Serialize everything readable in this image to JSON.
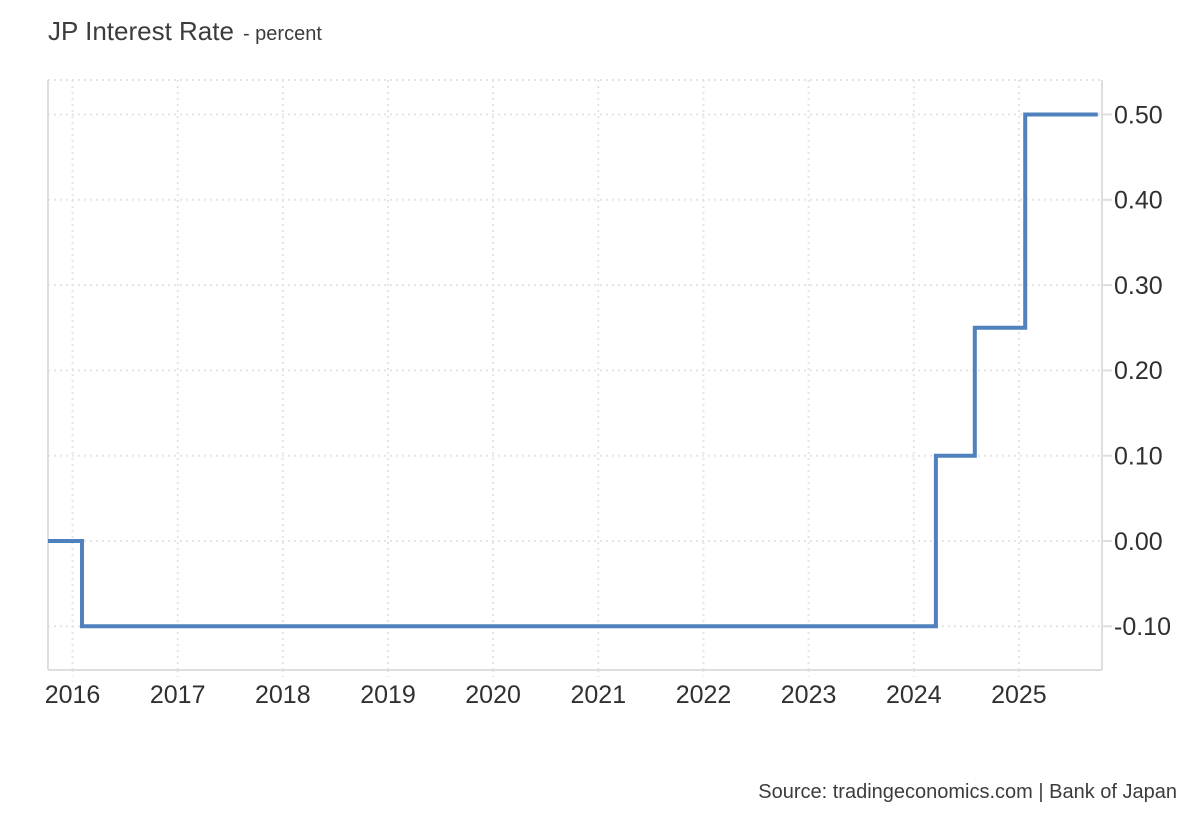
{
  "header": {
    "title": "JP Interest Rate",
    "subtitle": "- percent"
  },
  "footer": {
    "source": "Source: tradingeconomics.com | Bank of Japan"
  },
  "colors": {
    "line": "#4e81bd",
    "grid": "#e4e4e4",
    "border": "#dedede",
    "text": "#303030"
  },
  "chart_data": {
    "type": "line",
    "step": "after",
    "title": "JP Interest Rate",
    "ylabel": "percent",
    "legend": false,
    "grid": true,
    "xlim": [
      2015.767,
      2025.79
    ],
    "ylim": [
      -0.1512,
      0.5404
    ],
    "x_ticks": [
      {
        "value": 2016,
        "label": "2016"
      },
      {
        "value": 2017,
        "label": "2017"
      },
      {
        "value": 2018,
        "label": "2018"
      },
      {
        "value": 2019,
        "label": "2019"
      },
      {
        "value": 2020,
        "label": "2020"
      },
      {
        "value": 2021,
        "label": "2021"
      },
      {
        "value": 2022,
        "label": "2022"
      },
      {
        "value": 2023,
        "label": "2023"
      },
      {
        "value": 2024,
        "label": "2024"
      },
      {
        "value": 2025,
        "label": "2025"
      }
    ],
    "y_ticks": [
      {
        "value": -0.1,
        "label": "-0.10"
      },
      {
        "value": 0.0,
        "label": "0.00"
      },
      {
        "value": 0.1,
        "label": "0.10"
      },
      {
        "value": 0.2,
        "label": "0.20"
      },
      {
        "value": 0.3,
        "label": "0.30"
      },
      {
        "value": 0.4,
        "label": "0.40"
      },
      {
        "value": 0.5,
        "label": "0.50"
      }
    ],
    "series": [
      {
        "name": "JP Interest Rate",
        "color": "#4e81bd",
        "line_width": 4,
        "points": [
          {
            "x": 2015.767,
            "y": 0.0
          },
          {
            "x": 2016.09,
            "y": -0.1
          },
          {
            "x": 2024.21,
            "y": 0.1
          },
          {
            "x": 2024.58,
            "y": 0.25
          },
          {
            "x": 2025.06,
            "y": 0.5
          },
          {
            "x": 2025.75,
            "y": 0.5
          }
        ]
      }
    ]
  }
}
